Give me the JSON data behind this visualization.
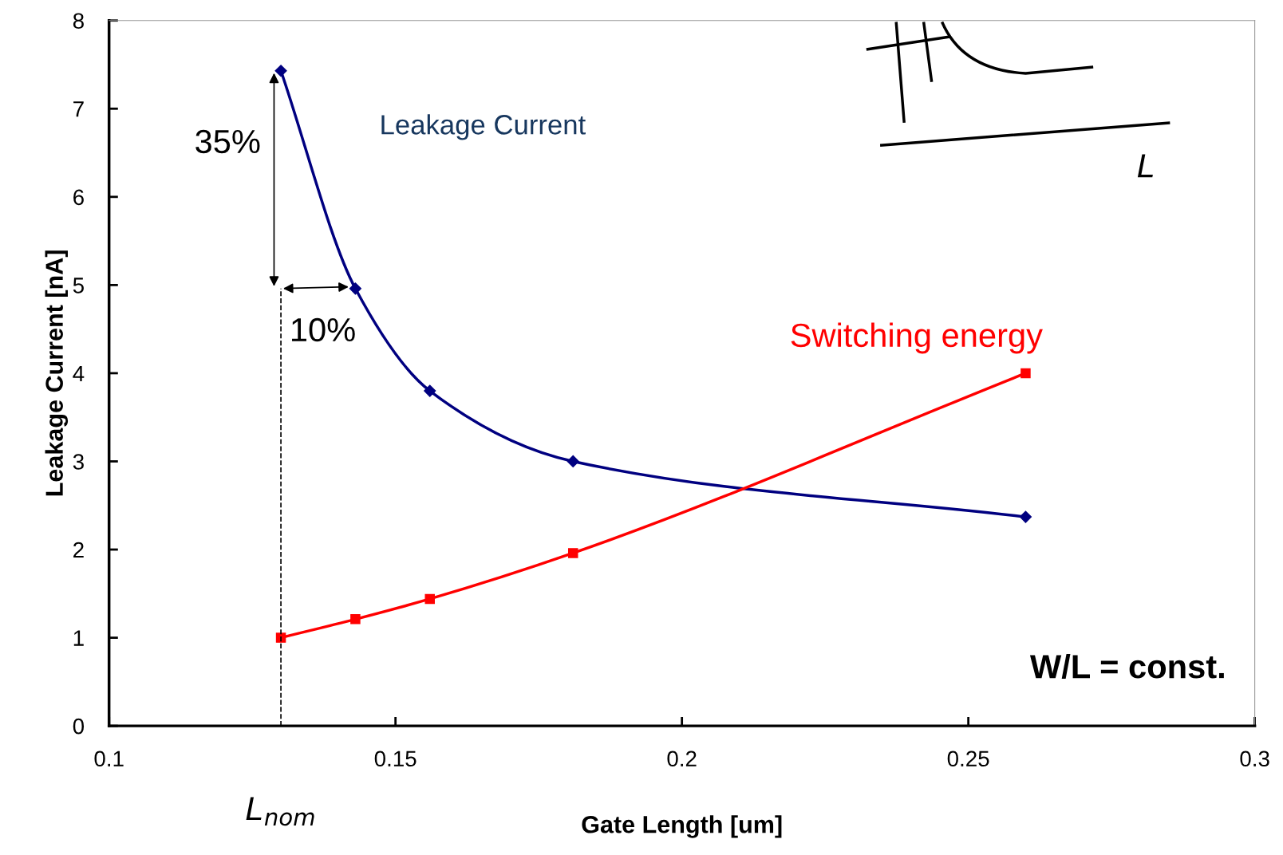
{
  "chart_data": {
    "type": "line",
    "xlabel": "Gate Length [um]",
    "ylabel": "Leakage Current [nA]",
    "xlim": [
      0.1,
      0.3
    ],
    "xticks": [
      0.1,
      0.15,
      0.2,
      0.25,
      0.3
    ],
    "ylim": [
      0,
      8
    ],
    "yticks": [
      0,
      1,
      2,
      3,
      4,
      5,
      6,
      7,
      8
    ],
    "grid": false,
    "line_style": "solid",
    "series": [
      {
        "name": "Leakage Current",
        "color": "#000080",
        "marker": "diamond",
        "x": [
          0.13,
          0.143,
          0.156,
          0.181,
          0.26
        ],
        "values": [
          7.43,
          4.96,
          3.8,
          3.0,
          2.37
        ]
      },
      {
        "name": "Switching energy",
        "color": "#ff0000",
        "marker": "square",
        "x": [
          0.13,
          0.143,
          0.156,
          0.181,
          0.26
        ],
        "values": [
          1.0,
          1.21,
          1.44,
          1.96,
          4.0
        ]
      }
    ],
    "ref_lines": [
      {
        "axis": "x",
        "value": 0.13,
        "label": "L$_{nom}$",
        "color": "#000000",
        "line_style": "dashed"
      }
    ],
    "annotations": [
      "35%",
      "10%",
      "W/L = const.",
      "L"
    ]
  }
}
